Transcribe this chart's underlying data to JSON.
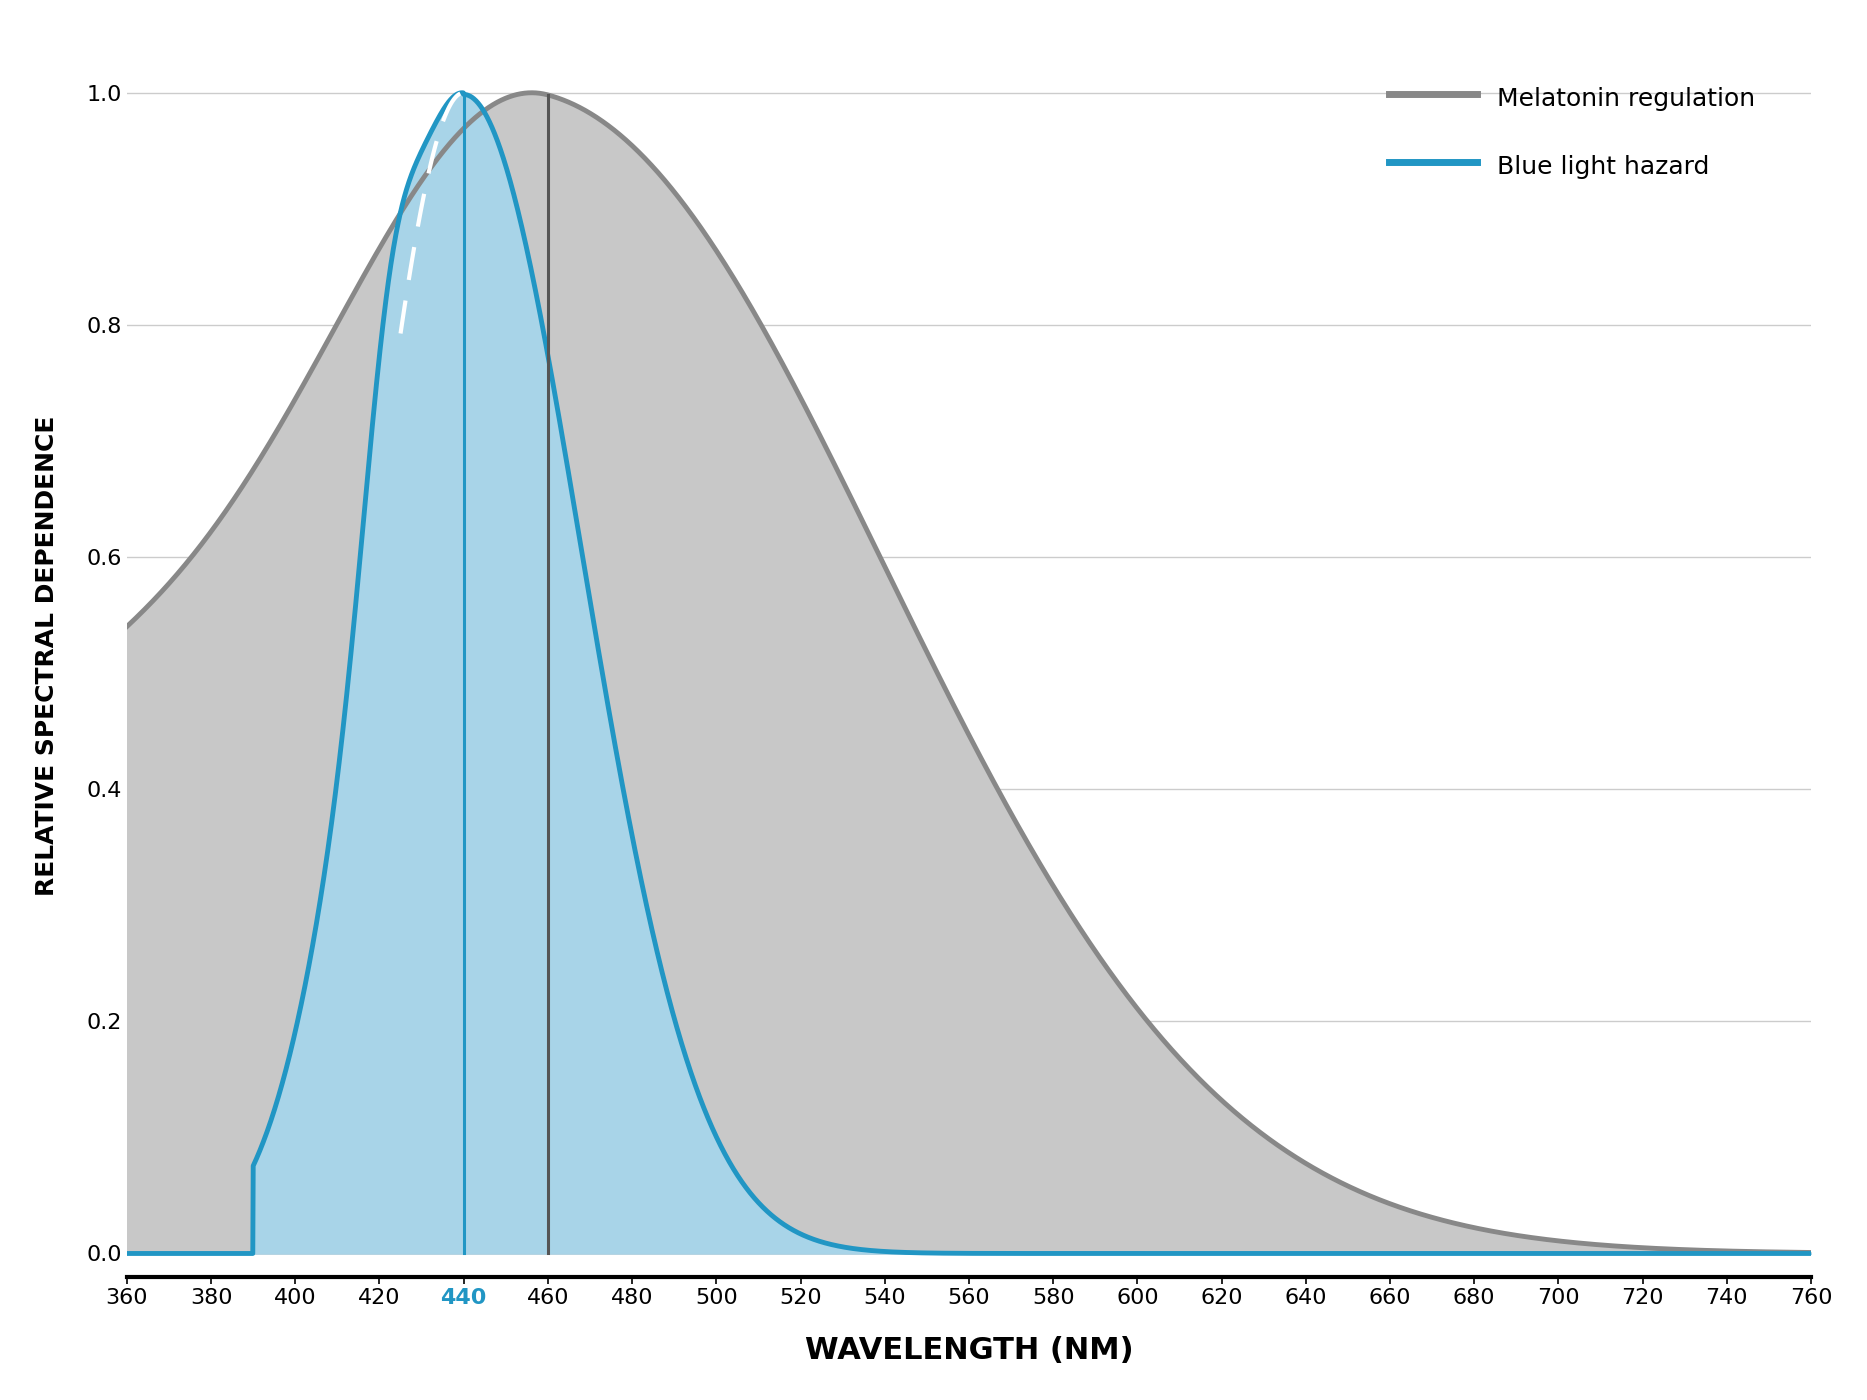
{
  "title": "",
  "xlabel": "WAVELENGTH (NM)",
  "ylabel": "RELATIVE SPECTRAL DEPENDENCE",
  "xlim": [
    360,
    760
  ],
  "ylim": [
    -0.02,
    1.05
  ],
  "xticks": [
    360,
    380,
    400,
    420,
    440,
    460,
    480,
    500,
    520,
    540,
    560,
    580,
    600,
    620,
    640,
    660,
    680,
    700,
    720,
    740,
    760
  ],
  "yticks": [
    0.0,
    0.2,
    0.4,
    0.6,
    0.8,
    1.0
  ],
  "background_color": "#ffffff",
  "grid_color": "#cccccc",
  "melatonin_line_color": "#888888",
  "melatonin_fill_color": "#c8c8c8",
  "blue_line_color": "#2196c4",
  "blue_fill_color": "#a8d4e8",
  "vline_blue_color": "#2196c4",
  "vline_gray_color": "#555555",
  "vline_440": 440,
  "vline_460": 460,
  "dashed_line_color": "#ffffff",
  "legend_melatonin": "Melatonin regulation",
  "legend_blue": "Blue light hazard",
  "xlabel_fontsize": 22,
  "ylabel_fontsize": 18,
  "tick_fontsize": 16,
  "legend_fontsize": 18
}
